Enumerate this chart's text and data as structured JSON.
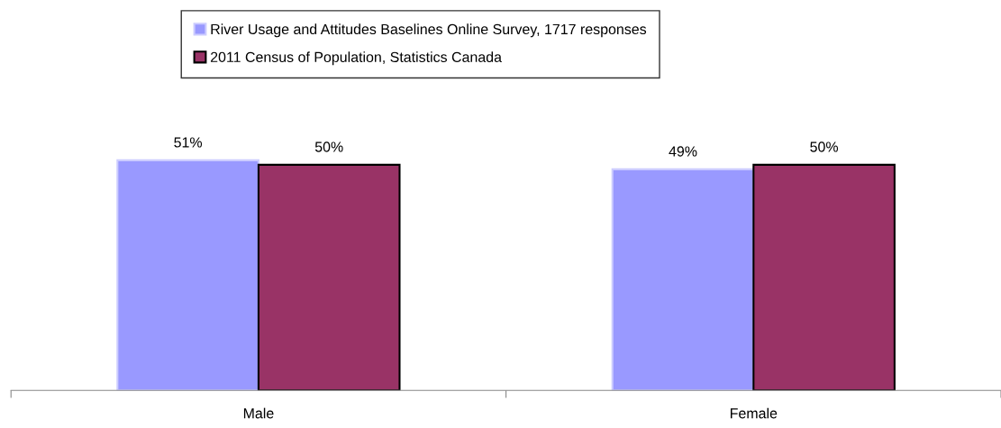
{
  "chart_data": {
    "type": "bar",
    "categories": [
      "Male",
      "Female"
    ],
    "series": [
      {
        "name": "River Usage and Attitudes Baselines Online Survey, 1717 responses",
        "color": "#9999ff",
        "values": [
          51,
          49
        ],
        "value_labels": [
          "51%",
          "49%"
        ]
      },
      {
        "name": "2011 Census of Population, Statistics Canada",
        "color": "#993366",
        "values": [
          50,
          50
        ],
        "value_labels": [
          "50%",
          "50%"
        ]
      }
    ],
    "legend": "top",
    "grid": false
  }
}
